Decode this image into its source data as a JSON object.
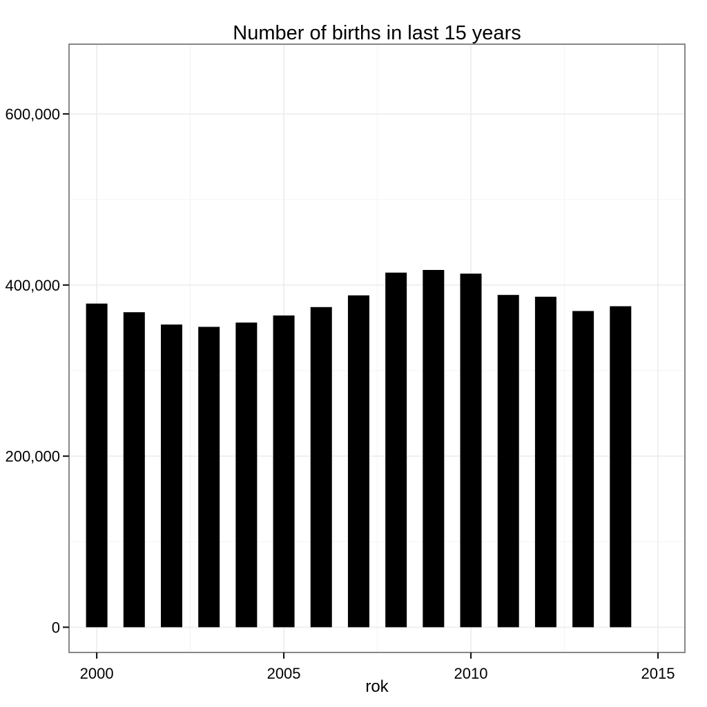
{
  "chart_data": {
    "type": "bar",
    "title": "Number of births in last 15 years",
    "xlabel": "rok",
    "ylabel": "",
    "categories": [
      2000,
      2001,
      2002,
      2003,
      2004,
      2005,
      2006,
      2007,
      2008,
      2009,
      2010,
      2011,
      2012,
      2013,
      2014
    ],
    "values": [
      378300,
      368200,
      353800,
      351100,
      356100,
      364400,
      374200,
      387900,
      414500,
      417600,
      413300,
      388400,
      386300,
      369600,
      375200
    ],
    "x_ticks": {
      "values": [
        2000,
        2005,
        2010,
        2015
      ],
      "labels": [
        "2000",
        "2005",
        "2010",
        "2015"
      ]
    },
    "y_ticks": {
      "values": [
        0,
        200000,
        400000,
        600000
      ],
      "labels": [
        "0",
        "200,000",
        "400,000",
        "600,000"
      ]
    },
    "x_minor_gridlines": [
      2002.5,
      2007.5,
      2012.5
    ],
    "y_minor_gridlines": [
      100000,
      300000,
      500000
    ],
    "xlim": [
      1999.26,
      2015.72
    ],
    "ylim": [
      -29500,
      681500
    ],
    "grid": true,
    "legend_position": "none",
    "colors": {
      "bar_fill": "#000000",
      "major_grid": "#ebebeb",
      "minor_grid": "#f5f5f5",
      "panel_border": "#7a7a7a",
      "tick_mark": "#1a1a1a",
      "text": "#000000",
      "background": "#ffffff"
    }
  }
}
